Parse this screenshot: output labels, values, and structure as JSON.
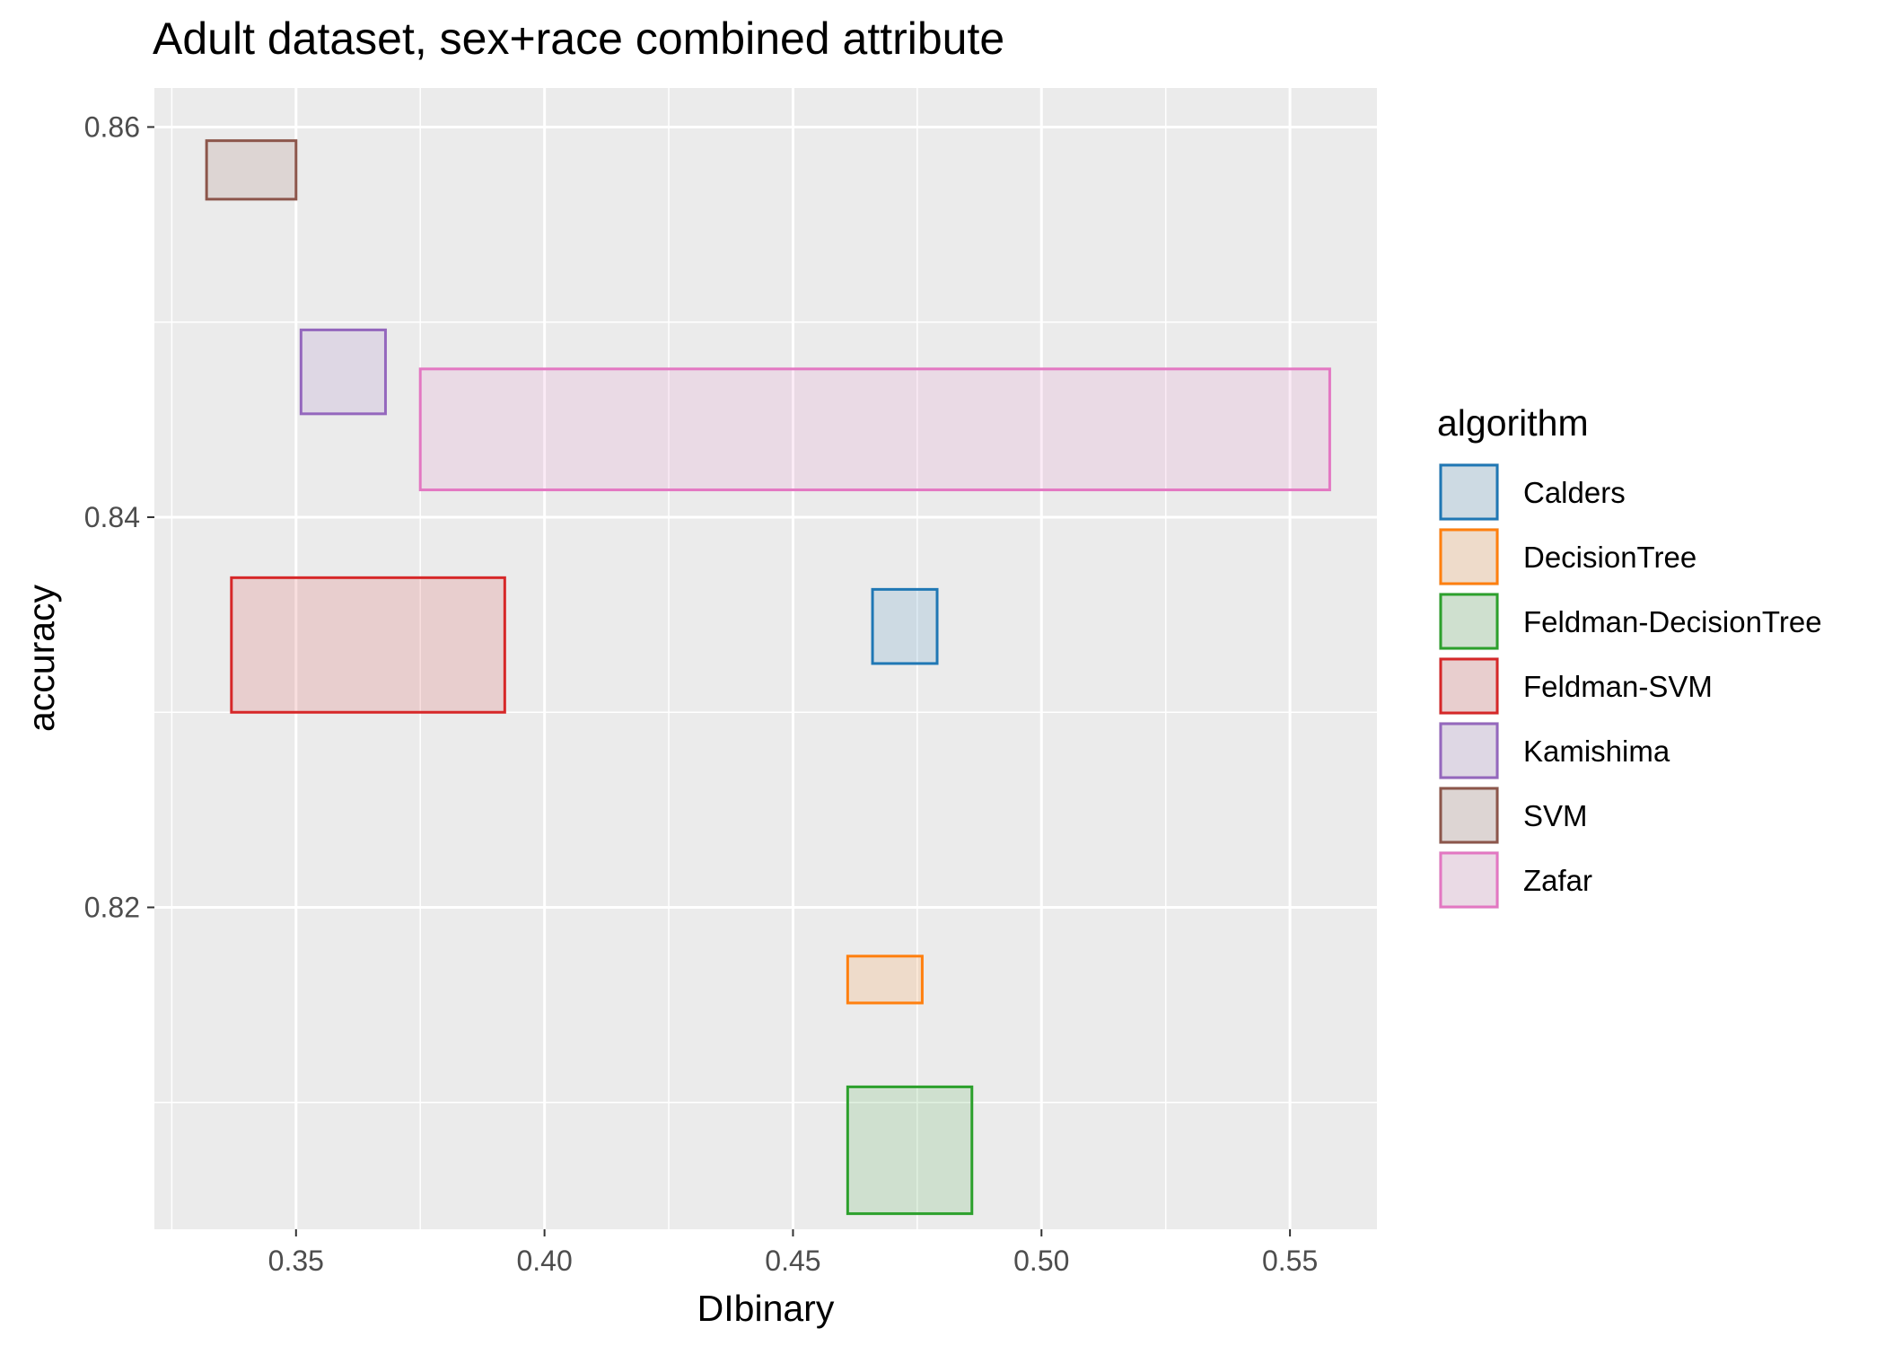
{
  "chart_data": {
    "type": "rect",
    "title": "Adult dataset, sex+race combined attribute",
    "xlabel": "DIbinary",
    "ylabel": "accuracy",
    "xlim": [
      0.3215,
      0.5675
    ],
    "ylim": [
      0.8035,
      0.862
    ],
    "x_ticks": [
      0.35,
      0.4,
      0.45,
      0.5,
      0.55
    ],
    "x_tick_labels": [
      "0.35",
      "0.40",
      "0.45",
      "0.50",
      "0.55"
    ],
    "y_ticks": [
      0.82,
      0.84,
      0.86
    ],
    "y_tick_labels": [
      "0.82",
      "0.84",
      "0.86"
    ],
    "grid": true,
    "legend": {
      "title": "algorithm",
      "position": "right"
    },
    "series": [
      {
        "name": "Calders",
        "color": "#1f77b4",
        "xmin": 0.466,
        "xmax": 0.479,
        "ymin": 0.8325,
        "ymax": 0.8363
      },
      {
        "name": "DecisionTree",
        "color": "#ff7f0e",
        "xmin": 0.461,
        "xmax": 0.476,
        "ymin": 0.8151,
        "ymax": 0.8175
      },
      {
        "name": "Feldman-DecisionTree",
        "color": "#2ca02c",
        "xmin": 0.461,
        "xmax": 0.486,
        "ymin": 0.8043,
        "ymax": 0.8108
      },
      {
        "name": "Feldman-SVM",
        "color": "#d62728",
        "xmin": 0.337,
        "xmax": 0.392,
        "ymin": 0.83,
        "ymax": 0.8369
      },
      {
        "name": "Kamishima",
        "color": "#9467bd",
        "xmin": 0.351,
        "xmax": 0.368,
        "ymin": 0.8453,
        "ymax": 0.8496
      },
      {
        "name": "SVM",
        "color": "#8c564b",
        "xmin": 0.332,
        "xmax": 0.35,
        "ymin": 0.8563,
        "ymax": 0.8593
      },
      {
        "name": "Zafar",
        "color": "#e377c2",
        "xmin": 0.375,
        "xmax": 0.558,
        "ymin": 0.8414,
        "ymax": 0.8476
      }
    ]
  }
}
